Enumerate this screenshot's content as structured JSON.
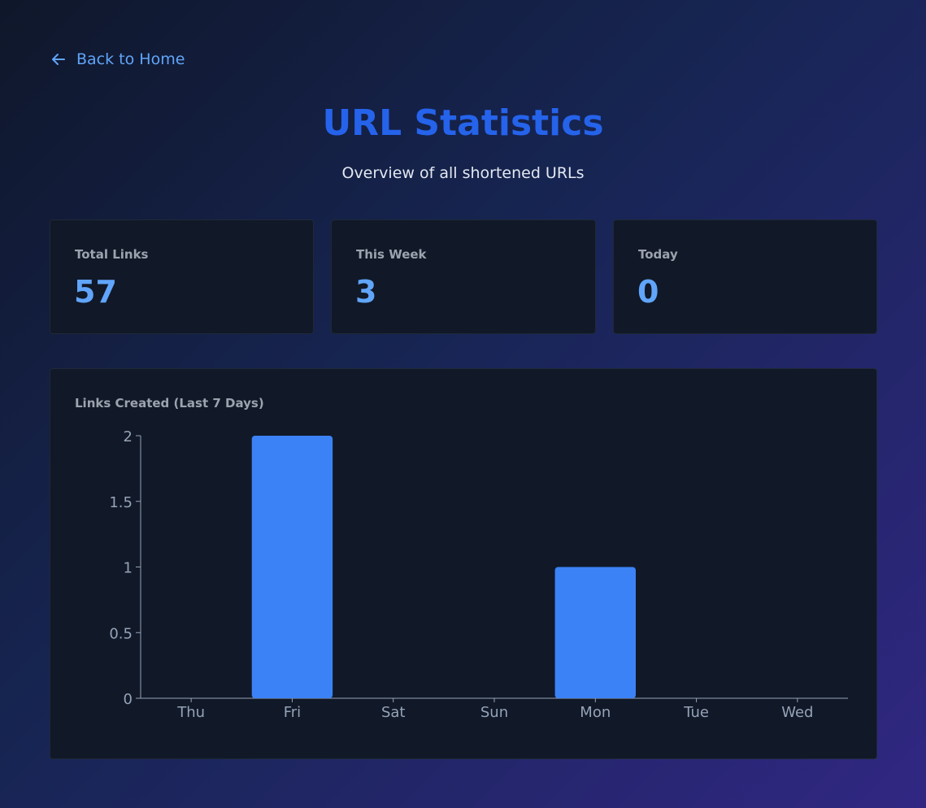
{
  "back_link": "Back to Home",
  "title": "URL Statistics",
  "subtitle": "Overview of all shortened URLs",
  "stats": [
    {
      "label": "Total Links",
      "value": 57
    },
    {
      "label": "This Week",
      "value": 3
    },
    {
      "label": "Today",
      "value": 0
    }
  ],
  "chart_data": {
    "type": "bar",
    "title": "Links Created (Last 7 Days)",
    "categories": [
      "Thu",
      "Fri",
      "Sat",
      "Sun",
      "Mon",
      "Tue",
      "Wed"
    ],
    "values": [
      0,
      2,
      0,
      0,
      1,
      0,
      0
    ],
    "color": "#3b82f6",
    "ylim": [
      0,
      2
    ],
    "yticks": [
      0,
      0.5,
      1,
      1.5,
      2
    ],
    "grid": false
  }
}
